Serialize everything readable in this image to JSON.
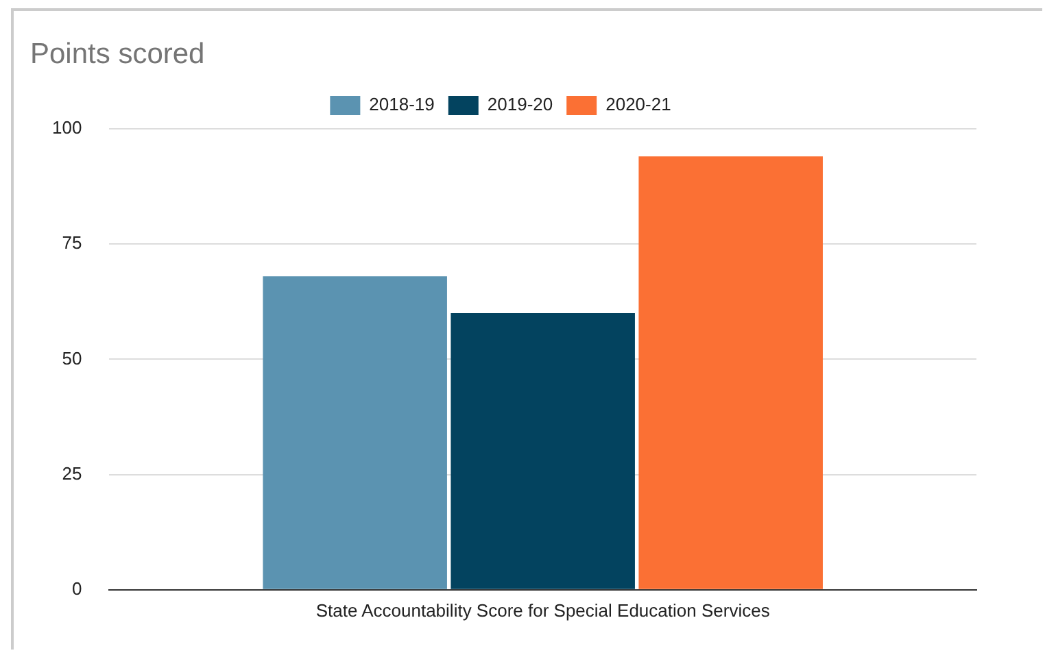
{
  "chart_data": {
    "type": "bar",
    "title": "Points scored",
    "categories": [
      "State Accountability Score for Special Education Services"
    ],
    "series": [
      {
        "name": "2018-19",
        "color": "#5b93b1",
        "values": [
          68
        ]
      },
      {
        "name": "2019-20",
        "color": "#03435f",
        "values": [
          60
        ]
      },
      {
        "name": "2020-21",
        "color": "#fb7034",
        "values": [
          94
        ]
      }
    ],
    "ylim": [
      0,
      100
    ],
    "yticks": [
      0,
      25,
      50,
      75,
      100
    ],
    "grid": "y",
    "legend": "top"
  }
}
